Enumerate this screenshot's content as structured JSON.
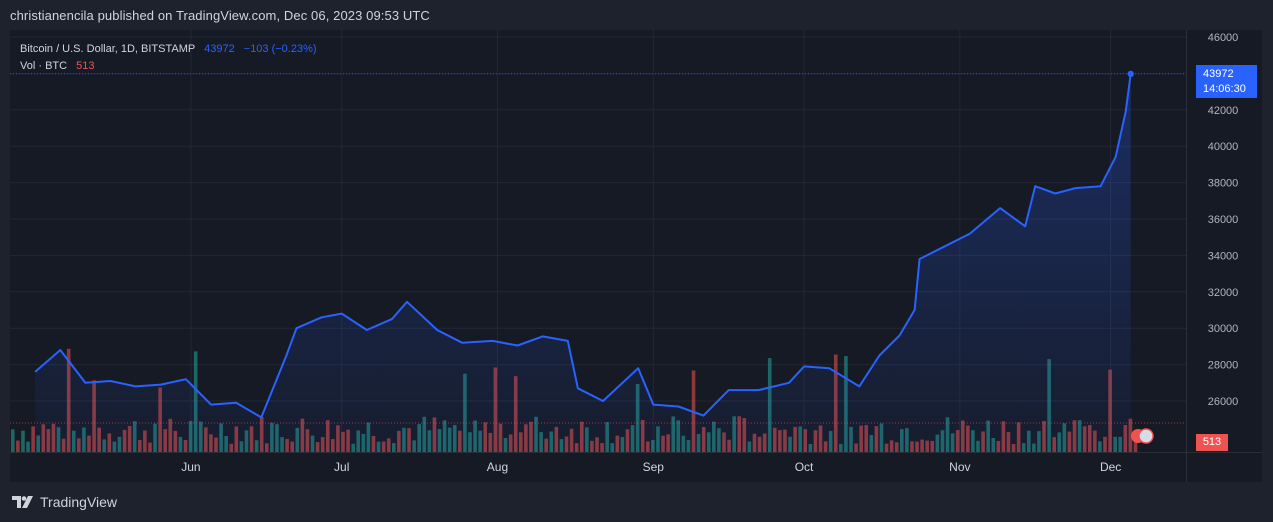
{
  "header": {
    "published_text": "christianencila published on TradingView.com, Dec 06, 2023 09:53 UTC"
  },
  "legend": {
    "symbol": "Bitcoin / U.S. Dollar, 1D, BITSTAMP",
    "last_price": "43972",
    "change": "−103 (−0.23%)",
    "volume_label": "Vol · BTC",
    "volume_value": "513"
  },
  "price_badge": {
    "price": "43972",
    "countdown": "14:06:30"
  },
  "volume_badge": {
    "value": "513"
  },
  "footer": {
    "brand": "TradingView"
  },
  "colors": {
    "background": "#161a25",
    "line": "#2962ff",
    "up_volume": "#26a69a",
    "down_volume": "#ef5350",
    "grid": "#232734"
  },
  "chart_data": {
    "type": "area",
    "title": "Bitcoin / U.S. Dollar, 1D, BITSTAMP",
    "xlabel": "",
    "ylabel": "",
    "ylim": [
      24000,
      46000
    ],
    "y_ticks": [
      "26000",
      "28000",
      "30000",
      "32000",
      "34000",
      "36000",
      "38000",
      "40000",
      "42000",
      "44000",
      "46000"
    ],
    "x_tick_labels": [
      "Jun",
      "Jul",
      "Aug",
      "Sep",
      "Oct",
      "Nov",
      "Dec"
    ],
    "x_tick_dates": [
      "2023-06-01",
      "2023-07-01",
      "2023-08-01",
      "2023-09-01",
      "2023-10-01",
      "2023-11-01",
      "2023-12-01"
    ],
    "grid": true,
    "series": [
      {
        "name": "Bitcoin / U.S. Dollar",
        "x": [
          "2023-05-01",
          "2023-05-06",
          "2023-05-11",
          "2023-05-16",
          "2023-05-21",
          "2023-05-26",
          "2023-05-31",
          "2023-06-05",
          "2023-06-10",
          "2023-06-15",
          "2023-06-20",
          "2023-06-22",
          "2023-06-27",
          "2023-07-01",
          "2023-07-06",
          "2023-07-11",
          "2023-07-14",
          "2023-07-20",
          "2023-07-25",
          "2023-07-31",
          "2023-08-05",
          "2023-08-10",
          "2023-08-15",
          "2023-08-17",
          "2023-08-22",
          "2023-08-29",
          "2023-09-01",
          "2023-09-06",
          "2023-09-11",
          "2023-09-16",
          "2023-09-22",
          "2023-09-28",
          "2023-10-01",
          "2023-10-06",
          "2023-10-12",
          "2023-10-16",
          "2023-10-20",
          "2023-10-23",
          "2023-10-24",
          "2023-10-29",
          "2023-11-03",
          "2023-11-09",
          "2023-11-14",
          "2023-11-16",
          "2023-11-20",
          "2023-11-24",
          "2023-11-29",
          "2023-12-02",
          "2023-12-04",
          "2023-12-05"
        ],
        "values": [
          27600,
          28800,
          27000,
          27100,
          26800,
          26900,
          27200,
          25800,
          25900,
          25100,
          28500,
          30000,
          30600,
          30800,
          29900,
          30500,
          31450,
          29900,
          29200,
          29300,
          29050,
          29550,
          29300,
          26700,
          26000,
          27800,
          25800,
          25700,
          25200,
          26600,
          26600,
          27000,
          27900,
          27800,
          26800,
          28500,
          29600,
          31000,
          33800,
          34500,
          35200,
          36600,
          35600,
          37800,
          37400,
          37700,
          37800,
          39400,
          41900,
          43972
        ]
      }
    ],
    "volume_series": {
      "name": "Vol · BTC",
      "last_value": 513
    }
  }
}
